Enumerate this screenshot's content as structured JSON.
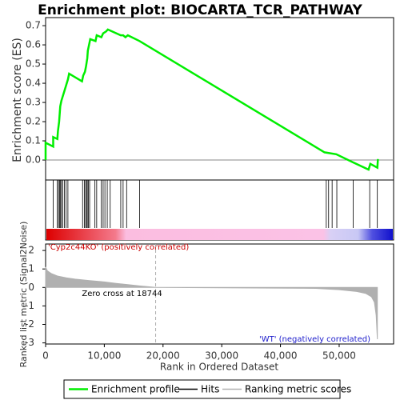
{
  "chart_data": [
    {
      "type": "line",
      "title": "Enrichment plot: BIOCARTA_TCR_PATHWAY",
      "ylabel": "Enrichment score (ES)",
      "xlim": [
        0,
        59270
      ],
      "ylim": [
        -0.104,
        0.742
      ],
      "yticks": [
        {
          "value": 0,
          "label": "0.0"
        },
        {
          "value": 0.1,
          "label": "0.1"
        },
        {
          "value": 0.2,
          "label": "0.2"
        },
        {
          "value": 0.3,
          "label": "0.3"
        },
        {
          "value": 0.4,
          "label": "0.4"
        },
        {
          "value": 0.5,
          "label": "0.5"
        },
        {
          "value": 0.6,
          "label": "0.6"
        },
        {
          "value": 0.7,
          "label": "0.7"
        }
      ],
      "series": [
        {
          "name": "Enrichment profile",
          "color": "#00ee00",
          "x": [
            0,
            0,
            1300,
            1300,
            2000,
            2100,
            2300,
            2400,
            2500,
            2700,
            2900,
            3200,
            3500,
            3800,
            4000,
            6200,
            6400,
            6700,
            6900,
            7100,
            7200,
            7400,
            7600,
            8500,
            8700,
            9500,
            9800,
            10300,
            10600,
            12800,
            13200,
            13600,
            14000,
            16000,
            47500,
            48500,
            49500,
            52200,
            55000,
            55300,
            56500,
            56600
          ],
          "values": [
            0,
            0.09,
            0.07,
            0.12,
            0.11,
            0.15,
            0.2,
            0.24,
            0.28,
            0.31,
            0.33,
            0.36,
            0.39,
            0.42,
            0.45,
            0.41,
            0.44,
            0.46,
            0.49,
            0.53,
            0.57,
            0.6,
            0.63,
            0.62,
            0.65,
            0.64,
            0.66,
            0.67,
            0.68,
            0.65,
            0.65,
            0.64,
            0.65,
            0.62,
            0.04,
            0.035,
            0.03,
            -0.01,
            -0.05,
            -0.02,
            -0.04,
            0.005
          ]
        },
        {
          "name": "Hits",
          "color": "#000000",
          "x": [
            1300,
            2000,
            2200,
            2400,
            2500,
            2700,
            2900,
            3200,
            3500,
            3800,
            6300,
            6600,
            6800,
            7000,
            7100,
            7300,
            7500,
            8400,
            8700,
            9500,
            9800,
            10100,
            10500,
            11000,
            12800,
            13200,
            13800,
            16000,
            47800,
            48200,
            48800,
            49600,
            52400,
            55200,
            56500
          ]
        }
      ]
    },
    {
      "type": "area",
      "xlabel": "Rank in Ordered Dataset",
      "ylabel": "Ranked list metric (Signal2Noise)",
      "xlim": [
        0,
        59270
      ],
      "ylim": [
        -3.06,
        2.35
      ],
      "xticks": [
        0,
        {
          "value": 10000,
          "label": "10,000"
        },
        {
          "value": 20000,
          "label": "20,000"
        },
        {
          "value": 30000,
          "label": "30,000"
        },
        {
          "value": 40000,
          "label": "40,000"
        },
        {
          "value": 50000,
          "label": "50,000"
        }
      ],
      "yticks": [
        -3,
        -2,
        -1,
        0,
        1,
        2
      ],
      "zero_cross": 18744,
      "annotation": "Zero cross at 18744",
      "pos_label": "'Cyp2c44KO' (positively correlated)",
      "neg_label": "'WT' (negatively correlated)",
      "series": [
        {
          "name": "Ranking metric scores",
          "color": "#b0b0b0",
          "x": [
            0,
            300,
            1000,
            2000,
            3500,
            5000,
            7500,
            10000,
            12000,
            14000,
            16000,
            18744,
            30000,
            46000,
            50000,
            53000,
            54500,
            55500,
            56000,
            56300,
            56500
          ],
          "values": [
            1.1,
            0.9,
            0.75,
            0.62,
            0.52,
            0.45,
            0.37,
            0.3,
            0.22,
            0.15,
            0.08,
            0,
            -0.02,
            -0.05,
            -0.12,
            -0.22,
            -0.32,
            -0.5,
            -0.8,
            -1.5,
            -2.8
          ]
        }
      ]
    }
  ]
}
